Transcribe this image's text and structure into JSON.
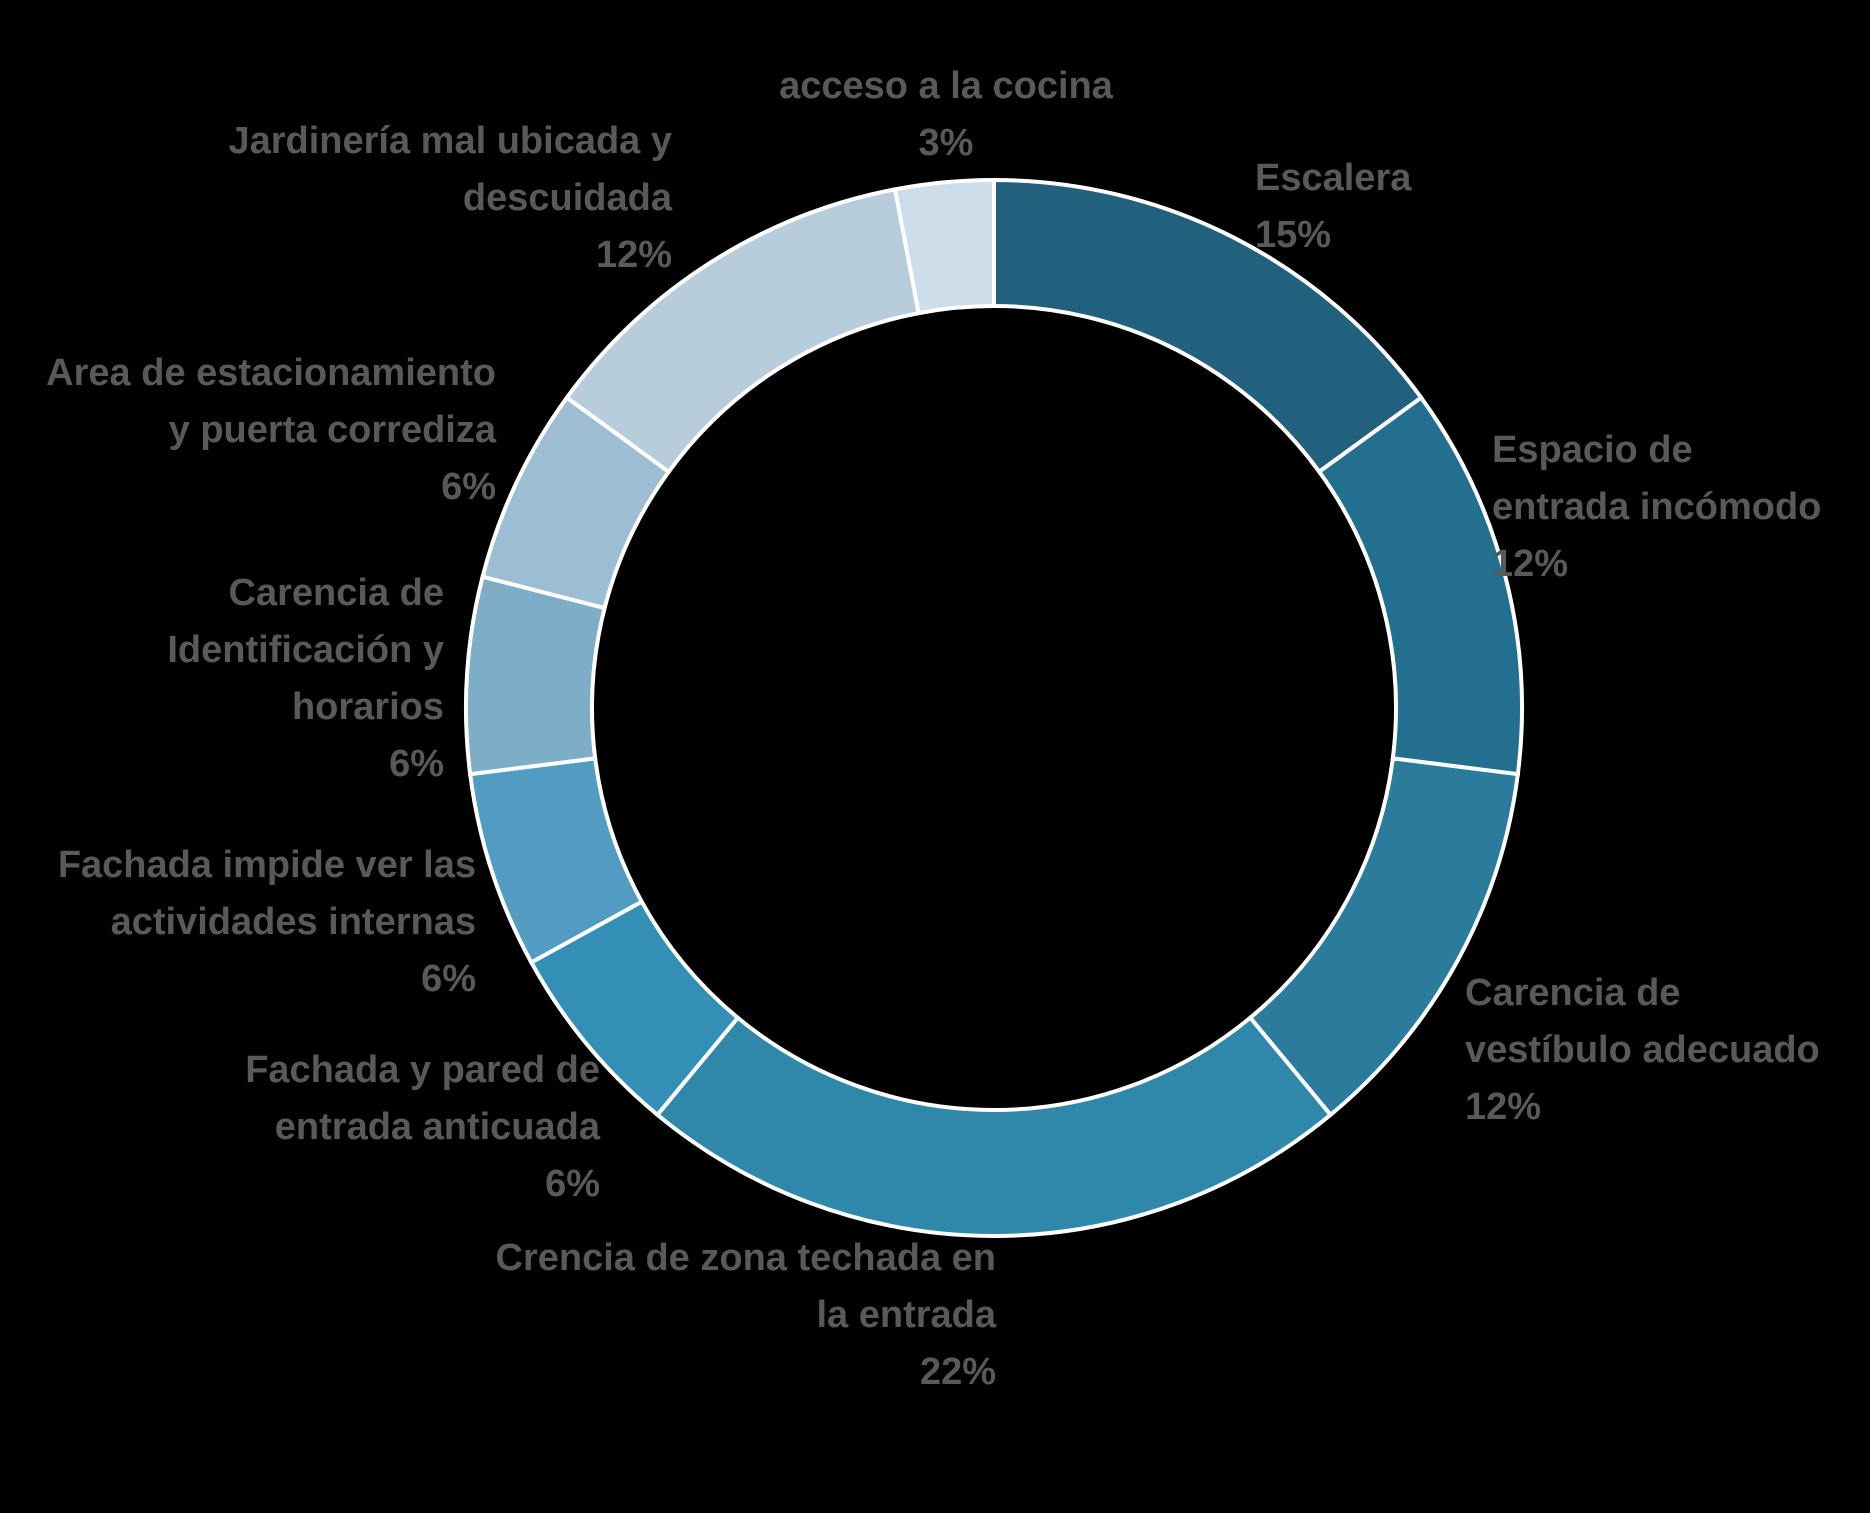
{
  "chart_data": {
    "type": "pie",
    "variant": "donut",
    "title": "",
    "legend": "none",
    "slices": [
      {
        "label": [
          "Escalera"
        ],
        "value": 15,
        "value_label": "15%",
        "color": "#21617d"
      },
      {
        "label": [
          "Espacio de",
          "entrada incómodo"
        ],
        "value": 12,
        "value_label": "12%",
        "color": "#236f8f"
      },
      {
        "label": [
          "Carencia de",
          "vestíbulo adecuado"
        ],
        "value": 12,
        "value_label": "12%",
        "color": "#2a7b9c"
      },
      {
        "label": [
          "Crencia de zona techada en",
          "la entrada"
        ],
        "value": 22,
        "value_label": "22%",
        "color": "#2f87aa"
      },
      {
        "label": [
          "Fachada y pared de",
          "entrada anticuada"
        ],
        "value": 6,
        "value_label": "6%",
        "color": "#338fb6"
      },
      {
        "label": [
          "Fachada impide ver las",
          "actividades internas"
        ],
        "value": 6,
        "value_label": "6%",
        "color": "#519cc0"
      },
      {
        "label": [
          "Carencia de",
          "Identificación y",
          "horarios"
        ],
        "value": 6,
        "value_label": "6%",
        "color": "#7eadc8"
      },
      {
        "label": [
          "Area de estacionamiento",
          "y puerta corrediza"
        ],
        "value": 6,
        "value_label": "6%",
        "color": "#9dbdd3"
      },
      {
        "label": [
          "Jardinería mal ubicada y",
          "descuidada"
        ],
        "value": 12,
        "value_label": "12%",
        "color": "#b7cddc"
      },
      {
        "label": [
          "acceso a la cocina"
        ],
        "value": 3,
        "value_label": "3%",
        "color": "#cddde9"
      }
    ]
  }
}
